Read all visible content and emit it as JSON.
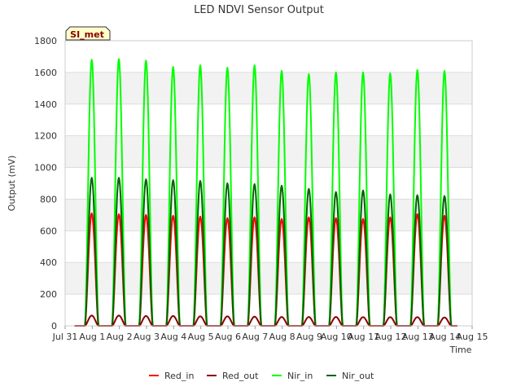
{
  "chart_data": {
    "type": "line",
    "title": "LED NDVI Sensor Output",
    "xlabel": "Time",
    "ylabel": "Output (mV)",
    "badge": "SI_met",
    "ylim": [
      0,
      1800
    ],
    "yticks": [
      0,
      200,
      400,
      600,
      800,
      1000,
      1200,
      1400,
      1600,
      1800
    ],
    "xlim": [
      0,
      15
    ],
    "xticks": [
      {
        "x": 0,
        "label": "Jul 31"
      },
      {
        "x": 1,
        "label": "Aug 1"
      },
      {
        "x": 2,
        "label": "Aug 2"
      },
      {
        "x": 3,
        "label": "Aug 3"
      },
      {
        "x": 4,
        "label": "Aug 4"
      },
      {
        "x": 5,
        "label": "Aug 5"
      },
      {
        "x": 6,
        "label": "Aug 6"
      },
      {
        "x": 7,
        "label": "Aug 7"
      },
      {
        "x": 8,
        "label": "Aug 8"
      },
      {
        "x": 9,
        "label": "Aug 9"
      },
      {
        "x": 10,
        "label": "Aug 10"
      },
      {
        "x": 11,
        "label": "Aug 11"
      },
      {
        "x": 12,
        "label": "Aug 12"
      },
      {
        "x": 13,
        "label": "Aug 13"
      },
      {
        "x": 14,
        "label": "Aug 14"
      },
      {
        "x": 15,
        "label": "Aug 15"
      }
    ],
    "grid": "horizontal bands",
    "legend_position": "bottom",
    "daily_peak_dates": [
      "Aug 1",
      "Aug 2",
      "Aug 3",
      "Aug 4",
      "Aug 5",
      "Aug 6",
      "Aug 7",
      "Aug 8",
      "Aug 9",
      "Aug 10",
      "Aug 11",
      "Aug 12",
      "Aug 13",
      "Aug 14"
    ],
    "series": [
      {
        "name": "Red_in",
        "color": "#ff0000",
        "peaks": [
          710,
          705,
          700,
          695,
          690,
          680,
          685,
          675,
          685,
          680,
          675,
          685,
          705,
          695
        ]
      },
      {
        "name": "Red_out",
        "color": "#8b0000",
        "peaks": [
          65,
          65,
          62,
          62,
          60,
          60,
          58,
          56,
          56,
          56,
          55,
          55,
          55,
          53
        ]
      },
      {
        "name": "Nir_in",
        "color": "#00ff00",
        "peaks": [
          1680,
          1685,
          1675,
          1635,
          1645,
          1630,
          1645,
          1610,
          1590,
          1600,
          1600,
          1595,
          1615,
          1610
        ]
      },
      {
        "name": "Nir_out",
        "color": "#006400",
        "peaks": [
          935,
          935,
          925,
          920,
          915,
          900,
          895,
          885,
          865,
          845,
          855,
          830,
          825,
          820
        ]
      }
    ]
  }
}
